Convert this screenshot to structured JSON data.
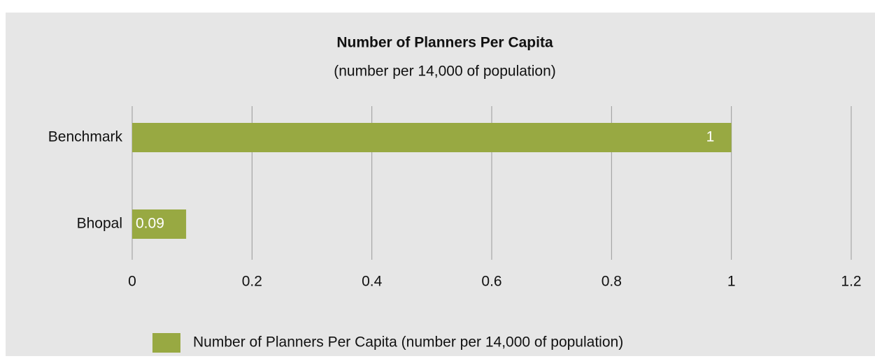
{
  "chart_data": {
    "type": "hbar",
    "title": "Number of Planners Per Capita",
    "subtitle": "(number per 14,000 of population)",
    "categories": [
      "Benchmark",
      "Bhopal"
    ],
    "series": [
      {
        "name": "Number of Planners Per Capita (number per 14,000 of population)",
        "color": "#98a942",
        "values": [
          1,
          0.09
        ]
      }
    ],
    "xlim": [
      0,
      1.2
    ],
    "xticks": [
      0,
      0.2,
      0.4,
      0.6,
      0.8,
      1,
      1.2
    ],
    "grid": true,
    "legend": "bottom"
  }
}
